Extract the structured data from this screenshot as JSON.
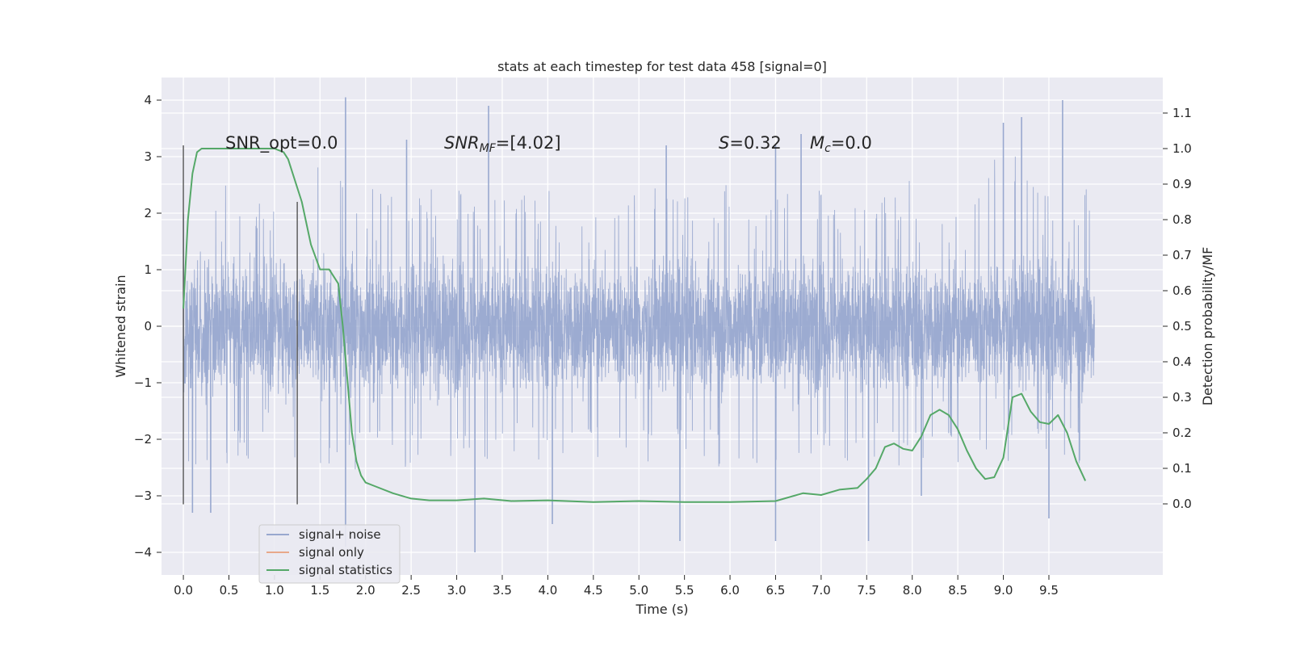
{
  "chart_data": {
    "type": "line",
    "title": "stats at each timestep for test data 458 [signal=0]",
    "xlabel": "Time (s)",
    "ylabel_left": "Whitened strain",
    "ylabel_right": "Detection probability/MF",
    "xlim": [
      -0.24,
      10.75
    ],
    "ylim_left": [
      -4.4,
      4.4
    ],
    "ylim_right": [
      -0.2,
      1.2
    ],
    "x_ticks": [
      "0.0",
      "0.5",
      "1.0",
      "1.5",
      "2.0",
      "2.5",
      "3.0",
      "3.5",
      "4.0",
      "4.5",
      "5.0",
      "5.5",
      "6.0",
      "6.5",
      "7.0",
      "7.5",
      "8.0",
      "8.5",
      "9.0",
      "9.5"
    ],
    "y_ticks_left": [
      "4",
      "3",
      "2",
      "1",
      "0",
      "−1",
      "−2",
      "−3",
      "−4"
    ],
    "y_ticks_right": [
      "1.1",
      "1.0",
      "0.9",
      "0.8",
      "0.7",
      "0.6",
      "0.5",
      "0.4",
      "0.3",
      "0.2",
      "0.1",
      "0.0"
    ],
    "grid": true,
    "legend_position": "lower-left",
    "annotations": {
      "snr_opt": "SNR_opt=0.0",
      "snr_mf_base": "SNR",
      "snr_mf_sub": "MF",
      "snr_mf_value": "=[4.02]",
      "s_var": "S",
      "s_value": "=0.32",
      "mc_var": "M",
      "mc_sub": "c",
      "mc_value": "=0.0"
    },
    "series": [
      {
        "name": "signal+ noise",
        "color": "#98a8cf",
        "axis": "left",
        "x_range": [
          0.0,
          10.0
        ],
        "envelope": {
          "x": [
            0.0,
            0.5,
            1.0,
            1.5,
            2.0,
            2.5,
            3.0,
            3.5,
            4.0,
            4.5,
            5.0,
            5.5,
            6.0,
            6.5,
            7.0,
            7.5,
            8.0,
            8.5,
            9.0,
            9.5,
            10.0
          ],
          "upper": [
            2.4,
            2.5,
            2.3,
            3.2,
            2.4,
            2.6,
            2.4,
            2.5,
            2.4,
            2.5,
            2.4,
            2.6,
            2.5,
            2.5,
            2.4,
            2.3,
            2.6,
            2.5,
            3.2,
            2.6,
            2.4
          ],
          "lower": [
            -2.5,
            -2.6,
            -2.4,
            -3.0,
            -2.4,
            -2.5,
            -2.7,
            -2.5,
            -2.4,
            -2.5,
            -2.5,
            -2.6,
            -2.5,
            -2.7,
            -2.6,
            -2.6,
            -2.5,
            -2.6,
            -2.5,
            -2.6,
            -2.4
          ]
        },
        "spikes": [
          [
            0.1,
            -3.3
          ],
          [
            0.3,
            -3.3
          ],
          [
            1.78,
            4.05
          ],
          [
            1.78,
            -3.9
          ],
          [
            2.45,
            3.3
          ],
          [
            3.35,
            3.9
          ],
          [
            3.2,
            -4.0
          ],
          [
            4.05,
            -3.5
          ],
          [
            5.3,
            3.2
          ],
          [
            5.45,
            -3.8
          ],
          [
            6.5,
            3.2
          ],
          [
            6.5,
            -3.8
          ],
          [
            6.78,
            3.4
          ],
          [
            7.52,
            -3.8
          ],
          [
            8.1,
            -3.0
          ],
          [
            9.0,
            3.6
          ],
          [
            9.5,
            -3.4
          ],
          [
            9.65,
            4.0
          ],
          [
            9.2,
            3.7
          ]
        ]
      },
      {
        "name": "signal only",
        "color": "#e8a88a",
        "axis": "left",
        "x": [],
        "y": []
      },
      {
        "name": "signal statistics",
        "color": "#55a868",
        "axis": "right",
        "x": [
          0.0,
          0.05,
          0.1,
          0.15,
          0.2,
          0.3,
          0.5,
          0.8,
          1.0,
          1.1,
          1.15,
          1.2,
          1.3,
          1.4,
          1.5,
          1.6,
          1.7,
          1.75,
          1.8,
          1.85,
          1.9,
          1.95,
          2.0,
          2.1,
          2.3,
          2.5,
          2.7,
          3.0,
          3.3,
          3.6,
          4.0,
          4.5,
          5.0,
          5.5,
          6.0,
          6.5,
          6.8,
          7.0,
          7.2,
          7.4,
          7.5,
          7.6,
          7.7,
          7.8,
          7.9,
          8.0,
          8.1,
          8.2,
          8.3,
          8.4,
          8.5,
          8.6,
          8.7,
          8.8,
          8.9,
          9.0,
          9.1,
          9.2,
          9.3,
          9.4,
          9.5,
          9.6,
          9.7,
          9.8,
          9.9
        ],
        "y": [
          0.55,
          0.8,
          0.93,
          0.99,
          1.0,
          1.0,
          1.0,
          1.0,
          1.0,
          0.99,
          0.97,
          0.93,
          0.85,
          0.73,
          0.66,
          0.66,
          0.62,
          0.5,
          0.35,
          0.2,
          0.12,
          0.08,
          0.06,
          0.05,
          0.03,
          0.015,
          0.01,
          0.01,
          0.015,
          0.008,
          0.01,
          0.005,
          0.008,
          0.005,
          0.005,
          0.008,
          0.03,
          0.025,
          0.04,
          0.045,
          0.07,
          0.1,
          0.16,
          0.17,
          0.155,
          0.15,
          0.19,
          0.25,
          0.265,
          0.25,
          0.21,
          0.15,
          0.1,
          0.07,
          0.075,
          0.13,
          0.3,
          0.31,
          0.26,
          0.23,
          0.225,
          0.25,
          0.2,
          0.12,
          0.065
        ]
      }
    ],
    "vertical_lines": [
      {
        "x": 0.0,
        "y_range": [
          -3.15,
          3.2
        ]
      },
      {
        "x": 1.25,
        "y_range": [
          -3.15,
          2.2
        ]
      }
    ]
  }
}
